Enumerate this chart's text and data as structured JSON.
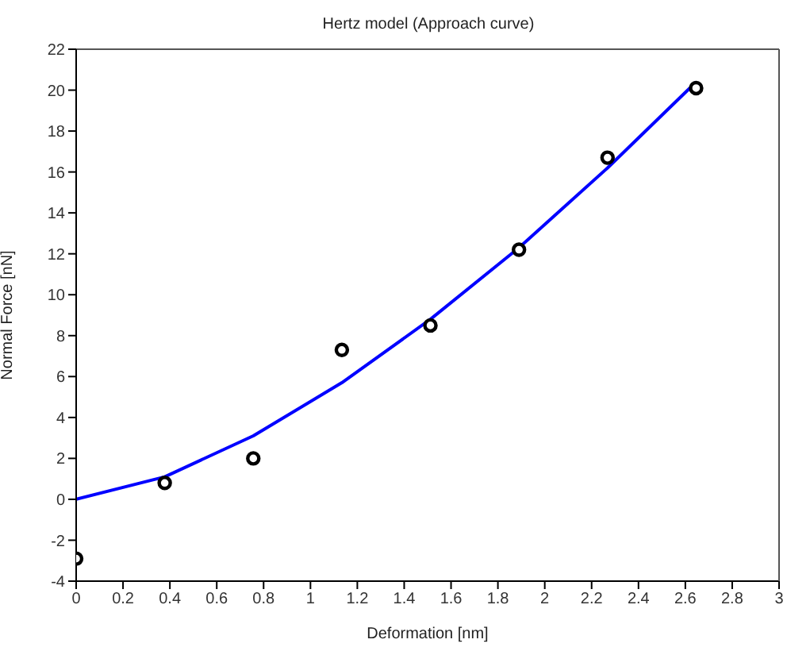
{
  "chart_data": {
    "type": "scatter",
    "title": "Hertz model (Approach curve)",
    "xlabel": "Deformation [nm]",
    "ylabel": "Normal Force [nN]",
    "xlim": [
      0,
      3
    ],
    "xticks": [
      0,
      0.2,
      0.4,
      0.6,
      0.8,
      1,
      1.2,
      1.4,
      1.6,
      1.8,
      2,
      2.2,
      2.4,
      2.6,
      2.8,
      3
    ],
    "ylim": [
      -4,
      22
    ],
    "yticks": [
      -4,
      -2,
      0,
      2,
      4,
      6,
      8,
      10,
      12,
      14,
      16,
      18,
      20,
      22
    ],
    "series": [
      {
        "color": "#000000",
        "marker": "circle",
        "x": [
          0,
          0.378,
          0.756,
          1.134,
          1.512,
          1.89,
          2.268,
          2.646
        ],
        "values": [
          -2.9,
          0.8,
          2.0,
          7.3,
          8.5,
          12.2,
          16.7,
          20.1
        ]
      },
      {
        "type": "line",
        "color": "#0000ff",
        "marker": "none",
        "line_style": "solid",
        "x": [
          0,
          0.378,
          0.756,
          1.134,
          1.512,
          1.89,
          2.268,
          2.646
        ],
        "values": [
          0,
          1.1,
          3.1,
          5.7,
          8.8,
          12.3,
          16.2,
          20.4
        ]
      }
    ]
  }
}
